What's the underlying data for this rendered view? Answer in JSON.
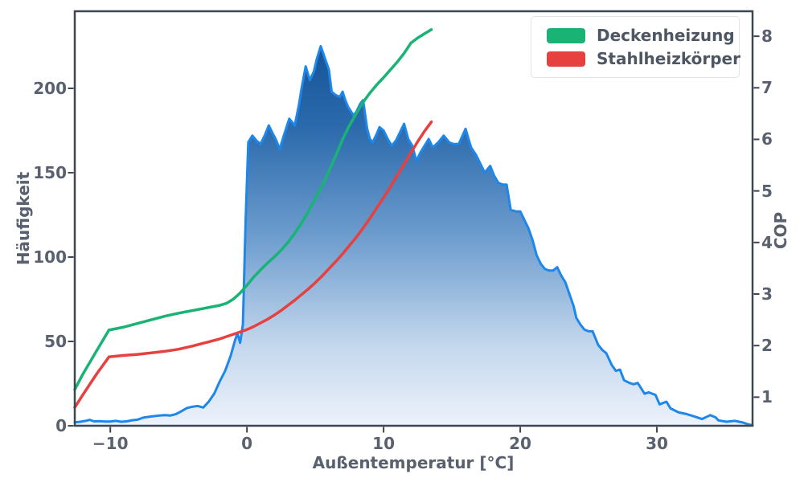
{
  "figure": {
    "xlabel": "Außentemperatur [°C]",
    "ylabel_left": "Häufigkeit",
    "ylabel_right": "COP",
    "text_color": "#59616e",
    "legend_text_color": "#4d5662",
    "axis_color": "#3e4652",
    "legend": [
      {
        "label": "Deckenheizung",
        "color": "#1ab376"
      },
      {
        "label": "Stahlheizkörper",
        "color": "#e6403f"
      }
    ]
  },
  "chart_data": {
    "type": "area+line",
    "title": "",
    "xlabel": "Außentemperatur [°C]",
    "ylabel_left": "Häufigkeit",
    "ylabel_right": "COP",
    "xlim": [
      -12.6,
      37.0
    ],
    "ylim_left": [
      0,
      245.7
    ],
    "ylim_right": [
      0.445,
      8.485
    ],
    "x_ticks": [
      -10,
      0,
      10,
      20,
      30
    ],
    "y_left_ticks": [
      0,
      50,
      100,
      150,
      200
    ],
    "y_right_ticks": [
      1,
      2,
      3,
      4,
      5,
      6,
      7,
      8
    ],
    "grid": false,
    "legend_position": "upper right",
    "histogram": {
      "name": "Häufigkeit",
      "axis": "left",
      "line_color": "#1e87ea",
      "fill_gradient": [
        {
          "offset": 0,
          "color": "#0c4a8e"
        },
        {
          "offset": 0.28,
          "color": "#2b6aac"
        },
        {
          "offset": 0.55,
          "color": "#6f9ecf"
        },
        {
          "offset": 0.8,
          "color": "#c2d6ec"
        },
        {
          "offset": 1,
          "color": "#edf2fb"
        }
      ],
      "x": [
        -12.6,
        -12.2,
        -11.8,
        -11.5,
        -11.2,
        -10.8,
        -10.4,
        -10,
        -9.6,
        -9.2,
        -8.8,
        -8.4,
        -8,
        -7.6,
        -7.2,
        -6.8,
        -6.4,
        -6,
        -5.6,
        -5.2,
        -4.8,
        -4.4,
        -4,
        -3.6,
        -3.2,
        -2.8,
        -2.4,
        -2,
        -1.6,
        -1.2,
        -0.9,
        -0.7,
        -0.5,
        -0.3,
        -0.1,
        0.1,
        0.4,
        0.7,
        1,
        1.3,
        1.6,
        1.9,
        2.1,
        2.4,
        2.7,
        3.1,
        3.3,
        3.5,
        3.8,
        4,
        4.3,
        4.6,
        4.9,
        5.1,
        5.4,
        5.7,
        6,
        6.2,
        6.5,
        6.8,
        7,
        7.2,
        7.4,
        7.8,
        8,
        8.3,
        8.5,
        8.8,
        9,
        9.2,
        9.5,
        9.7,
        10,
        10.3,
        10.6,
        10.9,
        11.2,
        11.5,
        11.8,
        12.1,
        12.4,
        12.7,
        13,
        13.3,
        13.6,
        14,
        14.4,
        14.8,
        15.1,
        15.5,
        16,
        16.4,
        16.8,
        17.1,
        17.4,
        17.8,
        18.1,
        18.4,
        18.7,
        19,
        19.3,
        19.7,
        20,
        20.3,
        20.6,
        20.9,
        21.2,
        21.5,
        21.8,
        22.1,
        22.4,
        22.7,
        23,
        23.3,
        23.6,
        23.9,
        24.1,
        24.4,
        24.7,
        25,
        25.3,
        25.7,
        26,
        26.3,
        26.7,
        27,
        27.3,
        27.6,
        28,
        28.3,
        28.6,
        29.1,
        29.4,
        29.9,
        30.2,
        30.7,
        31,
        31.6,
        32.1,
        32.7,
        33.3,
        33.9,
        34.3,
        34.5,
        35.1,
        35.7,
        36.3,
        36.7,
        37
      ],
      "y": [
        2,
        2.4,
        2.9,
        3.5,
        2.6,
        2.7,
        2.5,
        2.5,
        2.9,
        2.4,
        2.6,
        3.3,
        3.6,
        4.8,
        5.3,
        5.7,
        6.1,
        6.3,
        6.1,
        6.9,
        8.6,
        10.5,
        11.3,
        11.7,
        10.8,
        14.3,
        19,
        26.2,
        32.5,
        41.3,
        50,
        54.8,
        49.2,
        60,
        120,
        168,
        172,
        169,
        167,
        172,
        178,
        173,
        170,
        164,
        172,
        182,
        180,
        178,
        190,
        200,
        213,
        205,
        210,
        217,
        225,
        218,
        211,
        198,
        196,
        195,
        198,
        193,
        189,
        184,
        186,
        191,
        193,
        176,
        170,
        168,
        173,
        177,
        175,
        170,
        166,
        169,
        174,
        179,
        170,
        166,
        157,
        162,
        166,
        170,
        165,
        168,
        172,
        168,
        167,
        167,
        176,
        165,
        160,
        155,
        150,
        154,
        148,
        144,
        143,
        143,
        128,
        127,
        127,
        122,
        117,
        110,
        101,
        96,
        93,
        92,
        92,
        94,
        89,
        85,
        78,
        71,
        64,
        60,
        57,
        56,
        56,
        48,
        45,
        43,
        36,
        32.5,
        33.3,
        27,
        25.4,
        24.6,
        25.4,
        19,
        19.8,
        18.3,
        12.7,
        14.3,
        10.3,
        7.9,
        7.1,
        5.6,
        4,
        6.3,
        5,
        3.2,
        2.4,
        2.9,
        1.9,
        0.8,
        0.3
      ]
    },
    "series": [
      {
        "name": "Deckenheizung",
        "axis": "right",
        "color": "#1ab376",
        "x": [
          -12.6,
          -12,
          -11,
          -10.1,
          -9,
          -8,
          -7,
          -6,
          -5,
          -4,
          -3,
          -2,
          -1.5,
          -1,
          -0.5,
          0,
          0.5,
          1,
          1.5,
          2,
          2.5,
          3,
          3.5,
          4,
          4.5,
          5,
          5.5,
          6,
          6.5,
          7,
          7.5,
          8,
          8.5,
          9,
          9.5,
          10,
          10.5,
          11,
          11.5,
          12,
          12.5,
          13,
          13.5
        ],
        "y": [
          1.15,
          1.45,
          1.9,
          2.3,
          2.36,
          2.43,
          2.5,
          2.57,
          2.63,
          2.68,
          2.73,
          2.78,
          2.82,
          2.9,
          3.02,
          3.17,
          3.33,
          3.47,
          3.6,
          3.72,
          3.85,
          4.0,
          4.18,
          4.38,
          4.6,
          4.85,
          5.1,
          5.38,
          5.68,
          6.0,
          6.27,
          6.5,
          6.72,
          6.9,
          7.06,
          7.2,
          7.35,
          7.5,
          7.67,
          7.87,
          7.97,
          8.05,
          8.13
        ]
      },
      {
        "name": "Stahlheizkörper",
        "axis": "right",
        "color": "#e6403f",
        "x": [
          -12.6,
          -12,
          -11,
          -10.1,
          -9,
          -8,
          -7,
          -6,
          -5,
          -4,
          -3,
          -2,
          -1,
          0,
          0.5,
          1,
          1.5,
          2,
          2.5,
          3,
          3.5,
          4,
          4.5,
          5,
          5.5,
          6,
          6.5,
          7,
          7.5,
          8,
          8.5,
          9,
          9.5,
          10,
          10.5,
          11,
          11.5,
          12,
          12.5,
          13,
          13.5
        ],
        "y": [
          0.8,
          1.05,
          1.45,
          1.78,
          1.81,
          1.83,
          1.86,
          1.89,
          1.93,
          1.99,
          2.06,
          2.13,
          2.22,
          2.31,
          2.37,
          2.44,
          2.51,
          2.59,
          2.68,
          2.78,
          2.88,
          2.99,
          3.1,
          3.22,
          3.35,
          3.49,
          3.63,
          3.78,
          3.94,
          4.1,
          4.28,
          4.47,
          4.67,
          4.87,
          5.08,
          5.3,
          5.52,
          5.74,
          5.96,
          6.16,
          6.34
        ]
      }
    ]
  }
}
